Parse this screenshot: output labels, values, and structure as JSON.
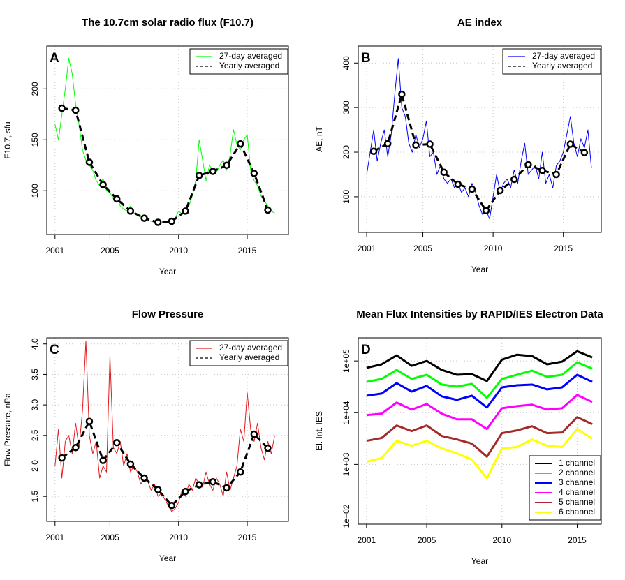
{
  "chart_data": [
    {
      "type": "line",
      "title": "The 10.7cm solar radio flux (F10.7)",
      "annotation": "A",
      "xlabel": "Year",
      "ylabel": "F10.7, sfu",
      "xlim": [
        2000.4,
        2018
      ],
      "ylim": [
        57,
        242
      ],
      "xticks": [
        2001,
        2005,
        2010,
        2015
      ],
      "yticks": [
        100,
        150,
        200
      ],
      "grid": true,
      "legend": "top-right",
      "series": [
        {
          "name": "27-day averaged",
          "color": "#00ff00",
          "line_style": "solid",
          "x": [
            2001,
            2001.25,
            2001.5,
            2001.75,
            2002,
            2002.25,
            2002.5,
            2002.75,
            2003,
            2003.25,
            2003.5,
            2003.75,
            2004,
            2004.25,
            2004.5,
            2004.75,
            2005,
            2005.25,
            2005.5,
            2005.75,
            2006,
            2006.25,
            2006.5,
            2006.75,
            2007,
            2007.25,
            2007.5,
            2007.75,
            2008,
            2008.25,
            2008.5,
            2008.75,
            2009,
            2009.25,
            2009.5,
            2009.75,
            2010,
            2010.25,
            2010.5,
            2010.75,
            2011,
            2011.25,
            2011.5,
            2011.75,
            2012,
            2012.25,
            2012.5,
            2012.75,
            2013,
            2013.25,
            2013.5,
            2013.75,
            2014,
            2014.25,
            2014.5,
            2014.75,
            2015,
            2015.25,
            2015.5,
            2015.75,
            2016,
            2016.25,
            2016.5,
            2016.75,
            2017
          ],
          "values": [
            165,
            150,
            175,
            200,
            230,
            215,
            185,
            165,
            140,
            130,
            125,
            120,
            110,
            105,
            112,
            100,
            98,
            92,
            95,
            85,
            82,
            80,
            85,
            78,
            76,
            74,
            72,
            71,
            70,
            69,
            68,
            68,
            69,
            70,
            71,
            73,
            80,
            77,
            82,
            85,
            95,
            110,
            150,
            130,
            110,
            125,
            120,
            118,
            125,
            130,
            120,
            135,
            160,
            145,
            140,
            150,
            155,
            120,
            110,
            105,
            95,
            90,
            85,
            80,
            78
          ]
        },
        {
          "name": "Yearly averaged",
          "color": "#000000",
          "line_style": "dashed",
          "marker": "circle",
          "x": [
            2001.5,
            2002.5,
            2003.5,
            2004.5,
            2005.5,
            2006.5,
            2007.5,
            2008.5,
            2009.5,
            2010.5,
            2011.5,
            2012.5,
            2013.5,
            2014.5,
            2015.5,
            2016.5
          ],
          "values": [
            181,
            179,
            128,
            106,
            92,
            80,
            73,
            69,
            70,
            80,
            115,
            119,
            125,
            146,
            117,
            81
          ]
        }
      ]
    },
    {
      "type": "line",
      "title": "AE index",
      "annotation": "B",
      "xlabel": "Year",
      "ylabel": "AE, nT",
      "xlim": [
        2000.4,
        2017.7
      ],
      "ylim": [
        20,
        438
      ],
      "xticks": [
        2001,
        2005,
        2010,
        2015
      ],
      "yticks": [
        100,
        200,
        300,
        400
      ],
      "grid": true,
      "legend": "top-right",
      "series": [
        {
          "name": "27-day averaged",
          "color": "#0000ff",
          "line_style": "solid",
          "x": [
            2001,
            2001.25,
            2001.5,
            2001.75,
            2002,
            2002.25,
            2002.5,
            2002.75,
            2003,
            2003.25,
            2003.5,
            2003.75,
            2004,
            2004.25,
            2004.5,
            2004.75,
            2005,
            2005.25,
            2005.5,
            2005.75,
            2006,
            2006.25,
            2006.5,
            2006.75,
            2007,
            2007.25,
            2007.5,
            2007.75,
            2008,
            2008.25,
            2008.5,
            2008.75,
            2009,
            2009.25,
            2009.5,
            2009.75,
            2010,
            2010.25,
            2010.5,
            2010.75,
            2011,
            2011.25,
            2011.5,
            2011.75,
            2012,
            2012.25,
            2012.5,
            2012.75,
            2013,
            2013.25,
            2013.5,
            2013.75,
            2014,
            2014.25,
            2014.5,
            2014.75,
            2015,
            2015.25,
            2015.5,
            2015.75,
            2016,
            2016.25,
            2016.5,
            2016.75,
            2017
          ],
          "values": [
            150,
            200,
            250,
            180,
            220,
            250,
            190,
            240,
            330,
            410,
            300,
            280,
            220,
            200,
            240,
            210,
            230,
            270,
            190,
            200,
            150,
            170,
            140,
            130,
            140,
            120,
            130,
            110,
            120,
            100,
            130,
            110,
            80,
            60,
            70,
            50,
            100,
            150,
            110,
            130,
            140,
            120,
            160,
            130,
            180,
            220,
            150,
            160,
            170,
            140,
            200,
            130,
            150,
            120,
            170,
            180,
            200,
            240,
            280,
            220,
            190,
            230,
            210,
            250,
            165
          ]
        },
        {
          "name": "Yearly averaged",
          "color": "#000000",
          "line_style": "dashed",
          "marker": "circle",
          "x": [
            2001.5,
            2002.5,
            2003.5,
            2004.5,
            2005.5,
            2006.5,
            2007.5,
            2008.5,
            2009.5,
            2010.5,
            2011.5,
            2012.5,
            2013.5,
            2014.5,
            2015.5,
            2016.5
          ],
          "values": [
            202,
            219,
            330,
            216,
            218,
            155,
            128,
            117,
            69,
            114,
            139,
            172,
            159,
            150,
            218,
            199
          ]
        }
      ]
    },
    {
      "type": "line",
      "title": "Flow Pressure",
      "annotation": "C",
      "xlabel": "Year",
      "ylabel": "Flow Pressure, nPa",
      "xlim": [
        2000.4,
        2018
      ],
      "ylim": [
        1.09,
        4.1
      ],
      "xticks": [
        2001,
        2005,
        2010,
        2015
      ],
      "yticks": [
        1.5,
        {
          "value": 2,
          "label": "2.0"
        },
        2.5,
        {
          "value": 3,
          "label": "3.0"
        },
        3.5,
        {
          "value": 4,
          "label": "4.0"
        }
      ],
      "grid": true,
      "legend": "top-right",
      "series": [
        {
          "name": "27-day averaged",
          "color": "#e41a1c",
          "line_style": "solid",
          "x": [
            2001,
            2001.25,
            2001.5,
            2001.75,
            2002,
            2002.25,
            2002.5,
            2002.75,
            2003,
            2003.25,
            2003.5,
            2003.75,
            2004,
            2004.25,
            2004.5,
            2004.75,
            2005,
            2005.25,
            2005.5,
            2005.75,
            2006,
            2006.25,
            2006.5,
            2006.75,
            2007,
            2007.25,
            2007.5,
            2007.75,
            2008,
            2008.25,
            2008.5,
            2008.75,
            2009,
            2009.25,
            2009.5,
            2009.75,
            2010,
            2010.25,
            2010.5,
            2010.75,
            2011,
            2011.25,
            2011.5,
            2011.75,
            2012,
            2012.25,
            2012.5,
            2012.75,
            2013,
            2013.25,
            2013.5,
            2013.75,
            2014,
            2014.25,
            2014.5,
            2014.75,
            2015,
            2015.25,
            2015.5,
            2015.75,
            2016,
            2016.25,
            2016.5,
            2016.75,
            2017
          ],
          "values": [
            2.0,
            2.6,
            1.8,
            2.4,
            2.5,
            2.2,
            2.7,
            2.3,
            2.9,
            4.05,
            2.5,
            2.2,
            2.4,
            1.8,
            2.0,
            1.9,
            3.8,
            2.3,
            2.2,
            2.4,
            2.0,
            2.2,
            1.9,
            2.0,
            1.9,
            1.7,
            1.8,
            1.75,
            1.6,
            1.7,
            1.5,
            1.55,
            1.45,
            1.35,
            1.25,
            1.3,
            1.4,
            1.6,
            1.5,
            1.7,
            1.6,
            1.8,
            1.7,
            1.65,
            1.9,
            1.7,
            1.6,
            1.8,
            1.7,
            1.5,
            1.9,
            1.6,
            1.8,
            2.0,
            2.6,
            2.4,
            3.2,
            2.6,
            2.4,
            2.7,
            2.3,
            2.1,
            2.4,
            2.2,
            2.5
          ]
        },
        {
          "name": "Yearly averaged",
          "color": "#000000",
          "line_style": "dashed",
          "marker": "circle",
          "x": [
            2001.5,
            2002.5,
            2003.5,
            2004.5,
            2005.5,
            2006.5,
            2007.5,
            2008.5,
            2009.5,
            2010.5,
            2011.5,
            2012.5,
            2013.5,
            2014.5,
            2015.5,
            2016.5
          ],
          "values": [
            2.13,
            2.3,
            2.73,
            2.09,
            2.38,
            2.03,
            1.8,
            1.61,
            1.35,
            1.58,
            1.69,
            1.74,
            1.64,
            1.9,
            2.52,
            2.29
          ]
        }
      ]
    },
    {
      "type": "line",
      "title": "Mean Flux Intensities by RAPID/IES Electron Data",
      "annotation": "D",
      "xlabel": "Year",
      "ylabel": "El. Int. IES",
      "xlim": [
        2000.45,
        2016.6
      ],
      "ylim": [
        70,
        280000
      ],
      "log_y": true,
      "xticks": [
        2001,
        2005,
        2010,
        2015
      ],
      "yticks": [
        {
          "value": 100,
          "label": "1e+02"
        },
        {
          "value": 1000,
          "label": "1e+03"
        },
        {
          "value": 10000,
          "label": "1e+04"
        },
        {
          "value": 100000,
          "label": "1e+05"
        }
      ],
      "grid": true,
      "legend": "bottom-right",
      "series": [
        {
          "name": "1 channel",
          "color": "#000000",
          "line_style": "solid",
          "x": [
            2001,
            2002,
            2003,
            2004,
            2005,
            2006,
            2007,
            2008,
            2009,
            2010,
            2011,
            2012,
            2013,
            2014,
            2015,
            2016
          ],
          "values": [
            73500,
            86000,
            128000,
            80500,
            100000,
            67000,
            54000,
            55600,
            40800,
            106000,
            132000,
            124000,
            86000,
            97000,
            154000,
            117000
          ]
        },
        {
          "name": "2 channel",
          "color": "#00ff00",
          "line_style": "solid",
          "x": [
            2001,
            2002,
            2003,
            2004,
            2005,
            2006,
            2007,
            2008,
            2009,
            2010,
            2011,
            2012,
            2013,
            2014,
            2015,
            2016
          ],
          "values": [
            39500,
            44800,
            66800,
            44800,
            54000,
            35000,
            31900,
            36000,
            19400,
            44800,
            54000,
            64900,
            49100,
            54000,
            94000,
            71100
          ]
        },
        {
          "name": "3 channel",
          "color": "#0000ff",
          "line_style": "solid",
          "x": [
            2001,
            2002,
            2003,
            2004,
            2005,
            2006,
            2007,
            2008,
            2009,
            2010,
            2011,
            2012,
            2013,
            2014,
            2015,
            2016
          ],
          "values": [
            21300,
            23400,
            37200,
            25600,
            32900,
            20700,
            17700,
            21300,
            12600,
            30900,
            33900,
            35000,
            28200,
            30900,
            54000,
            39500
          ]
        },
        {
          "name": "4 channel",
          "color": "#ff00ff",
          "line_style": "solid",
          "x": [
            2001,
            2002,
            2003,
            2004,
            2005,
            2006,
            2007,
            2008,
            2009,
            2010,
            2011,
            2012,
            2013,
            2014,
            2015,
            2016
          ],
          "values": [
            8970,
            9550,
            15700,
            11500,
            14700,
            9550,
            7450,
            7450,
            4840,
            12200,
            13400,
            14300,
            11500,
            12200,
            22000,
            16100
          ]
        },
        {
          "name": "5 channel",
          "color": "#a52a2a",
          "line_style": "solid",
          "x": [
            2001,
            2002,
            2003,
            2004,
            2005,
            2006,
            2007,
            2008,
            2009,
            2010,
            2011,
            2012,
            2013,
            2014,
            2015,
            2016
          ],
          "values": [
            2860,
            3240,
            5650,
            4410,
            5650,
            3550,
            3040,
            2530,
            1410,
            4020,
            4550,
            5470,
            4020,
            4140,
            8180,
            6010
          ]
        },
        {
          "name": "6 channel",
          "color": "#ffff00",
          "line_style": "solid",
          "x": [
            2001,
            2002,
            2003,
            2004,
            2005,
            2006,
            2007,
            2008,
            2009,
            2010,
            2011,
            2012,
            2013,
            2014,
            2015,
            2016
          ],
          "values": [
            1130,
            1320,
            2860,
            2300,
            2860,
            2040,
            1640,
            1240,
            540,
            2040,
            2170,
            3040,
            2300,
            2170,
            4840,
            3140
          ]
        }
      ]
    }
  ]
}
